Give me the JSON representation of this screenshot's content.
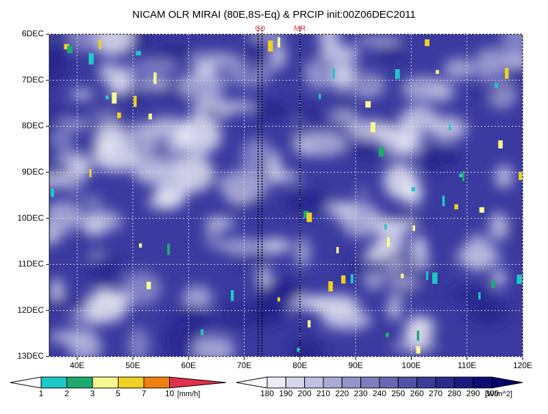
{
  "chart_data": {
    "type": "hovmoller",
    "title": "NICAM OLR MIRAI (80E,8S-Eq) & PRCIP init:00Z06DEC2011",
    "xlim": [
      35,
      120
    ],
    "xticks": [
      {
        "value": 40,
        "label": "40E"
      },
      {
        "value": 50,
        "label": "50E"
      },
      {
        "value": 60,
        "label": "60E"
      },
      {
        "value": 70,
        "label": "70E"
      },
      {
        "value": 80,
        "label": "80E"
      },
      {
        "value": 90,
        "label": "90E"
      },
      {
        "value": 100,
        "label": "100E"
      },
      {
        "value": 110,
        "label": "110E"
      },
      {
        "value": 120,
        "label": "120E"
      }
    ],
    "ylim": [
      6,
      13
    ],
    "yticks": [
      {
        "value": 6,
        "label": "6DEC"
      },
      {
        "value": 7,
        "label": "7DEC"
      },
      {
        "value": 8,
        "label": "8DEC"
      },
      {
        "value": 9,
        "label": "9DEC"
      },
      {
        "value": 10,
        "label": "10DEC"
      },
      {
        "value": 11,
        "label": "11DEC"
      },
      {
        "value": 12,
        "label": "12DEC"
      },
      {
        "value": 13,
        "label": "13DEC"
      }
    ],
    "grid": true,
    "vlines": [
      {
        "label": "G0",
        "values": [
          72.5,
          73.2
        ]
      },
      {
        "label": "MR",
        "values": [
          80
        ]
      }
    ],
    "colorbars": [
      {
        "levels": [
          1,
          2,
          3,
          5,
          7,
          10
        ],
        "unit": "[mm/h]",
        "colors": [
          "#ffffff",
          "#1ec8c8",
          "#1eaa6e",
          "#f8f890",
          "#f0d020",
          "#f08010",
          "#e0304a"
        ]
      },
      {
        "levels": [
          180,
          190,
          200,
          210,
          220,
          230,
          240,
          250,
          260,
          270,
          280,
          290,
          300
        ],
        "unit": "[W/m^2]",
        "colors": [
          "#ffffff",
          "#ececf6",
          "#d6d6ec",
          "#c0c0e2",
          "#aaaad6",
          "#9494ca",
          "#7e7ebe",
          "#6868b2",
          "#5252a6",
          "#3c3c9a",
          "#2a2a8e",
          "#1a1a82",
          "#0c0c76",
          "#00006a"
        ]
      }
    ]
  }
}
